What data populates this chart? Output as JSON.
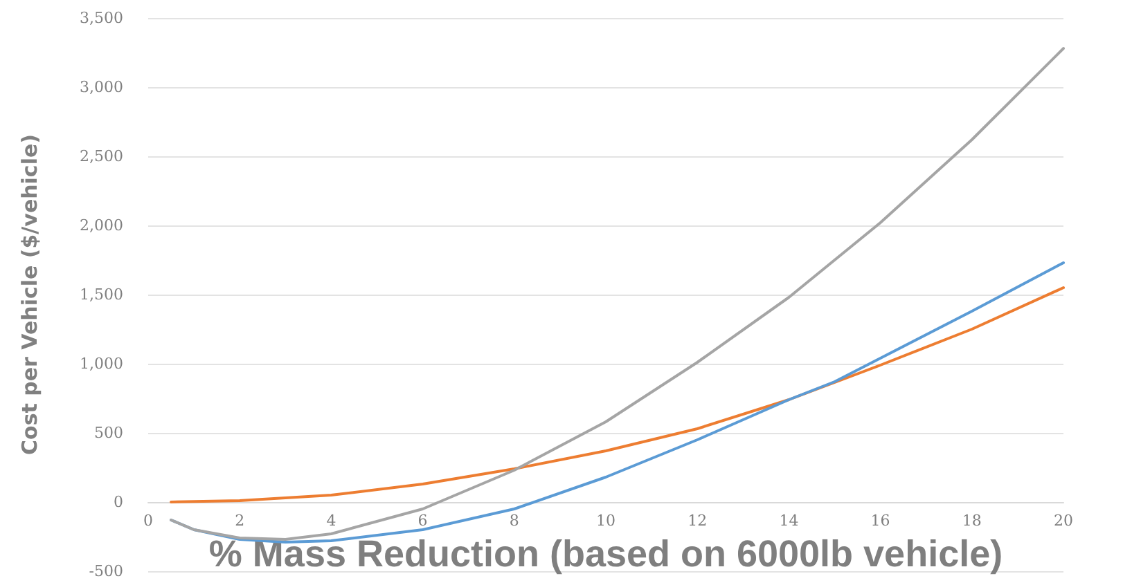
{
  "chart_data": {
    "type": "line",
    "xlabel": "% Mass Reduction (based on 6000lb vehicle)",
    "ylabel": "Cost per Vehicle ($/vehicle)",
    "xlim": [
      0,
      20
    ],
    "xticks": [
      0,
      2,
      4,
      6,
      8,
      10,
      12,
      14,
      16,
      18,
      20
    ],
    "ylim": [
      -500,
      3500
    ],
    "yticks": [
      {
        "value": -500,
        "label": "-500"
      },
      0,
      500,
      {
        "value": 1000,
        "label": "1,000"
      },
      {
        "value": 1500,
        "label": "1,500"
      },
      {
        "value": 2000,
        "label": "2,000"
      },
      {
        "value": 2500,
        "label": "2,500"
      },
      {
        "value": 3000,
        "label": "3,000"
      },
      {
        "value": 3500,
        "label": "3,500"
      }
    ],
    "grid": "y",
    "marker": "none",
    "line_style": "solid",
    "series": [
      {
        "color": "#ed7d31",
        "x": [
          0.5,
          2,
          4,
          6,
          8,
          10,
          12,
          14,
          16,
          18,
          20
        ],
        "values": [
          0,
          10,
          50,
          130,
          240,
          370,
          530,
          740,
          990,
          1250,
          1550
        ]
      },
      {
        "color": "#5b9bd5",
        "x": [
          0.5,
          1,
          2,
          3,
          4,
          6,
          8,
          10,
          12,
          14,
          15,
          16,
          18,
          20
        ],
        "values": [
          -130,
          -200,
          -270,
          -290,
          -280,
          -200,
          -50,
          180,
          450,
          740,
          870,
          1040,
          1380,
          1730
        ]
      },
      {
        "color": "#a5a5a5",
        "x": [
          0.5,
          1,
          2,
          3,
          4,
          6,
          8,
          10,
          12,
          14,
          16,
          18,
          20
        ],
        "values": [
          -130,
          -200,
          -260,
          -270,
          -230,
          -50,
          230,
          580,
          1010,
          1480,
          2020,
          2620,
          3280
        ]
      }
    ]
  }
}
